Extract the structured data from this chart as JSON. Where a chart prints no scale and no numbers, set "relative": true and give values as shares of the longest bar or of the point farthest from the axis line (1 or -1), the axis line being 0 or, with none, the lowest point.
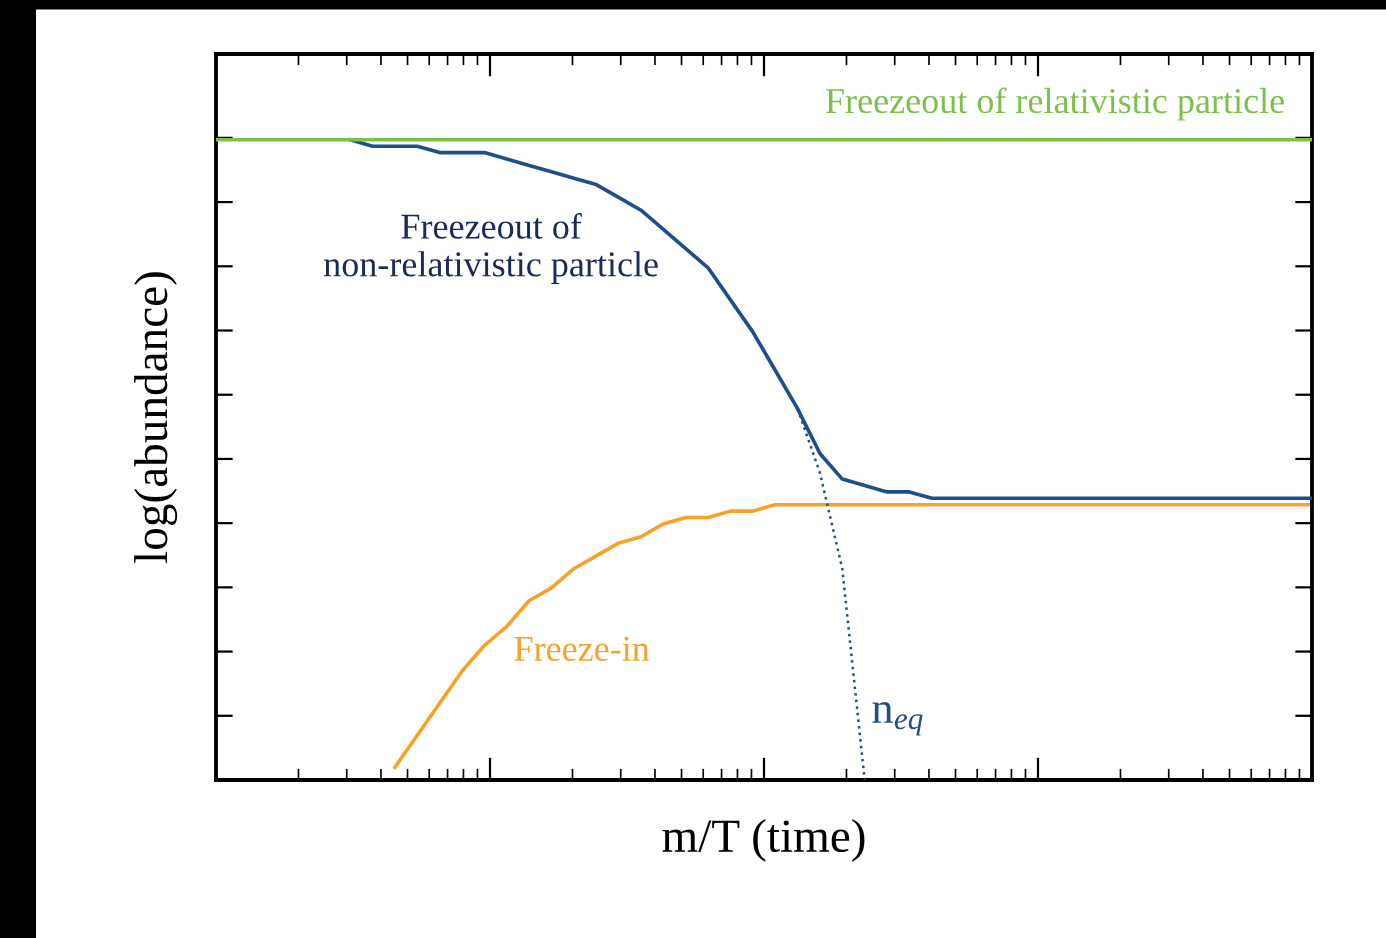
{
  "chart_data": {
    "type": "line",
    "relative": true,
    "xlabel": "m/T (time)",
    "ylabel": "log(abundance)",
    "tick_labels": false,
    "grid": false,
    "legend": false,
    "marker": "none",
    "categories": [
      null,
      null,
      null,
      null,
      null,
      null,
      null,
      null,
      null,
      null,
      null,
      null,
      null,
      null,
      null,
      null,
      null,
      null,
      null,
      null,
      null,
      null,
      null,
      null,
      null,
      null,
      null,
      null,
      null,
      null,
      null,
      null,
      null,
      null,
      null,
      null,
      null,
      null,
      null,
      null,
      null,
      null,
      null,
      null,
      null,
      null,
      null,
      null,
      null,
      null
    ],
    "series": [
      {
        "name": "Freezeout of relativistic particle",
        "color": "#7cc04a",
        "line_style": "solid",
        "values": [
          1.0,
          1.0,
          1.0,
          1.0,
          1.0,
          1.0,
          1.0,
          1.0,
          1.0,
          1.0,
          1.0,
          1.0,
          1.0,
          1.0,
          1.0,
          1.0,
          1.0,
          1.0,
          1.0,
          1.0,
          1.0,
          1.0,
          1.0,
          1.0,
          1.0,
          1.0,
          1.0,
          1.0,
          1.0,
          1.0,
          1.0,
          1.0,
          1.0,
          1.0,
          1.0,
          1.0,
          1.0,
          1.0,
          1.0,
          1.0,
          1.0,
          1.0,
          1.0,
          1.0,
          1.0,
          1.0,
          1.0,
          1.0,
          1.0,
          1.0
        ]
      },
      {
        "name": "Freezeout of\nnon-relativistic particle",
        "color": "#1f4e8c",
        "line_style": "solid",
        "values": [
          null,
          null,
          null,
          null,
          null,
          null,
          1.0,
          0.99,
          0.99,
          0.99,
          0.98,
          0.98,
          0.98,
          0.97,
          0.96,
          0.95,
          0.94,
          0.93,
          0.91,
          0.89,
          0.86,
          0.83,
          0.8,
          0.75,
          0.7,
          0.64,
          0.58,
          0.51,
          0.47,
          0.46,
          0.45,
          0.45,
          0.44,
          0.44,
          0.44,
          0.44,
          0.44,
          0.44,
          0.44,
          0.44,
          0.44,
          0.44,
          0.44,
          0.44,
          0.44,
          0.44,
          0.44,
          0.44,
          0.44,
          0.44
        ]
      },
      {
        "name": "Freeze-in",
        "color": "#f7a128",
        "line_style": "solid",
        "values": [
          null,
          null,
          null,
          null,
          null,
          null,
          null,
          null,
          0.02,
          0.07,
          0.12,
          0.17,
          0.21,
          0.24,
          0.28,
          0.3,
          0.33,
          0.35,
          0.37,
          0.38,
          0.4,
          0.41,
          0.41,
          0.42,
          0.42,
          0.43,
          0.43,
          0.43,
          0.43,
          0.43,
          0.43,
          0.43,
          0.43,
          0.43,
          0.43,
          0.43,
          0.43,
          0.43,
          0.43,
          0.43,
          0.43,
          0.43,
          0.43,
          0.43,
          0.43,
          0.43,
          0.43,
          0.43,
          0.43,
          0.43
        ]
      },
      {
        "name": "n$_{eq}$",
        "color": "#1f4e8c",
        "line_style": "dotted",
        "values": [
          null,
          null,
          null,
          null,
          null,
          null,
          null,
          null,
          null,
          null,
          null,
          null,
          null,
          null,
          null,
          null,
          null,
          null,
          null,
          null,
          null,
          null,
          null,
          null,
          null,
          null,
          0.58,
          0.48,
          0.33,
          0.0,
          null,
          null,
          null,
          null,
          null,
          null,
          null,
          null,
          null,
          null,
          null,
          null,
          null,
          null,
          null,
          null,
          null,
          null,
          null,
          null
        ]
      }
    ]
  }
}
